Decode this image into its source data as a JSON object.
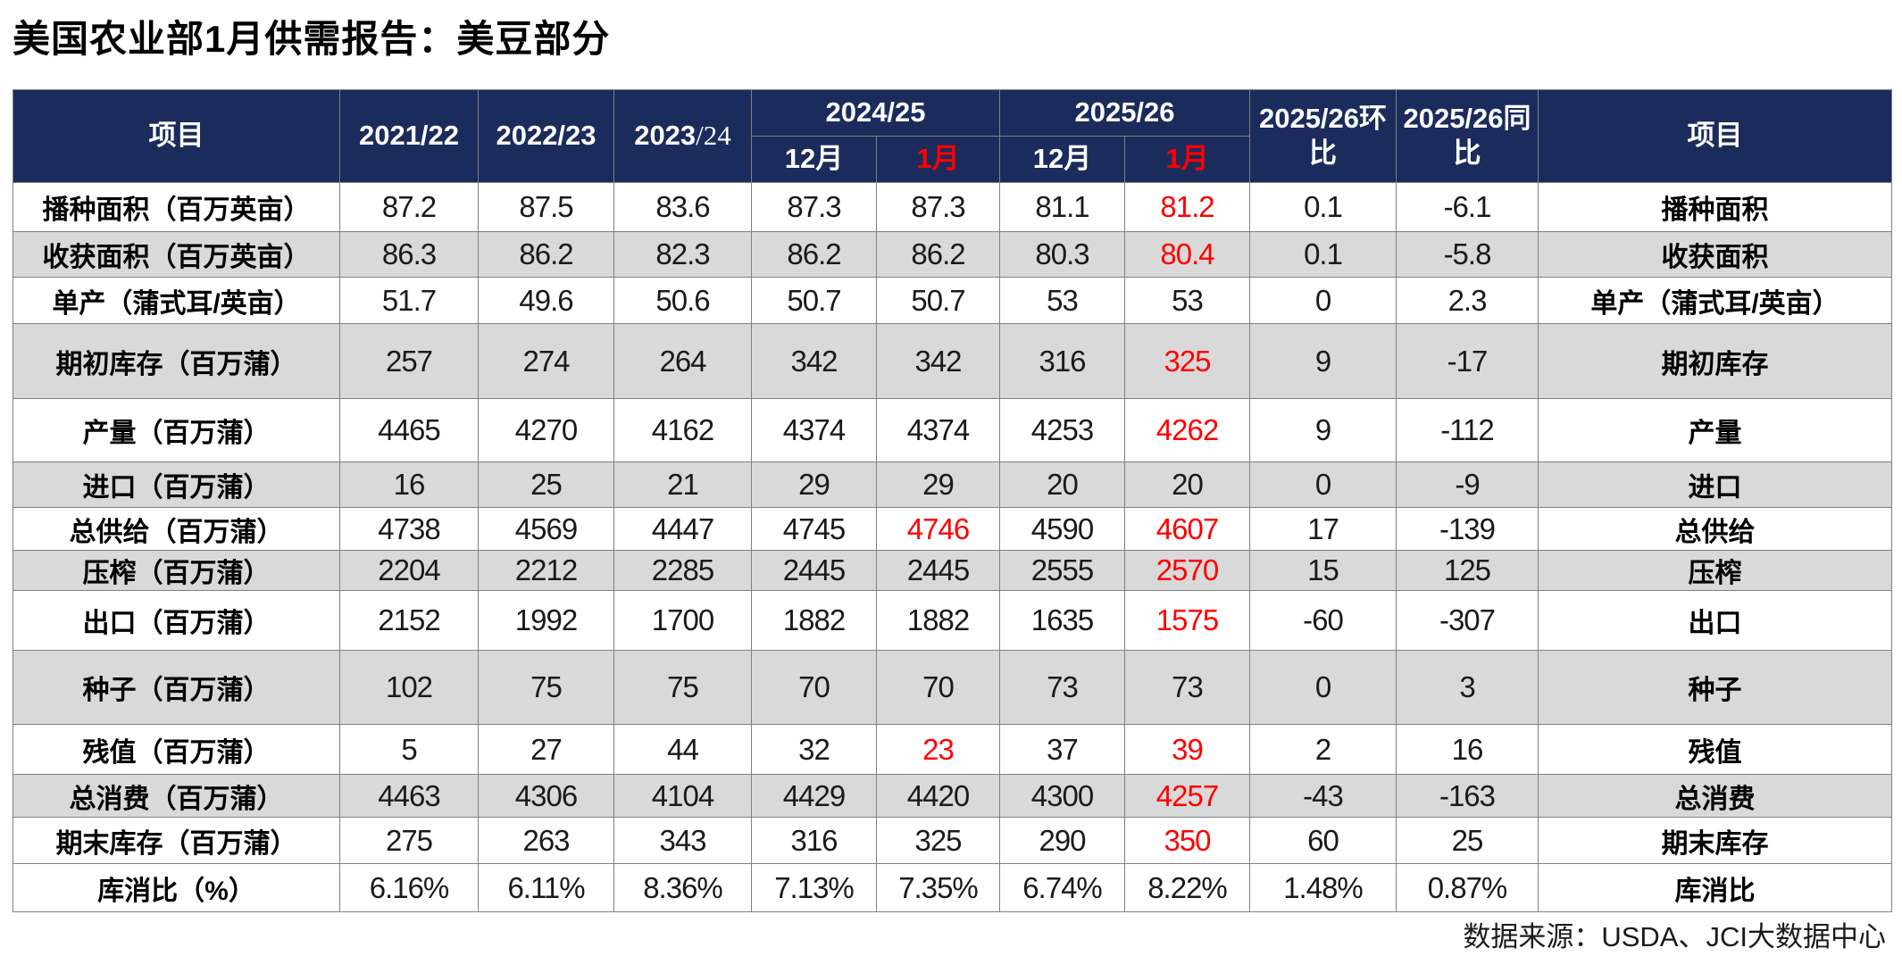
{
  "title": "美国农业部1月供需报告：美豆部分",
  "footer": {
    "source": "数据来源：USDA、JCI大数据中心"
  },
  "colors": {
    "navy": "#1B2B5C",
    "red": "#FF0000",
    "stripe": "#D9D9D9",
    "border": "#808080",
    "text": "#1A1A1A"
  },
  "header": {
    "item_left": "项目",
    "item_right": "项目",
    "year_cols": [
      "2021/22",
      "2022/23"
    ],
    "year_col_mixed": {
      "bold_part": "2023",
      "thin_part": "/24"
    },
    "groups": [
      {
        "label": "2024/25",
        "months": [
          "12月",
          "1月"
        ]
      },
      {
        "label": "2025/26",
        "months": [
          "12月",
          "1月"
        ]
      }
    ],
    "mom_col": "2025/26环比",
    "yoy_col": "2025/26同比"
  },
  "rows": [
    {
      "label": "播种面积（百万英亩）",
      "right": "播种面积",
      "cells": [
        "87.2",
        "87.5",
        "83.6",
        "87.3",
        "87.3",
        "81.1",
        "81.2",
        "0.1",
        "-6.1"
      ],
      "red_cells": [
        6
      ]
    },
    {
      "label": "收获面积（百万英亩）",
      "right": "收获面积",
      "cells": [
        "86.3",
        "86.2",
        "82.3",
        "86.2",
        "86.2",
        "80.3",
        "80.4",
        "0.1",
        "-5.8"
      ],
      "red_cells": [
        6
      ]
    },
    {
      "label": "单产（蒲式耳/英亩）",
      "right": "单产（蒲式耳/英亩）",
      "cells": [
        "51.7",
        "49.6",
        "50.6",
        "50.7",
        "50.7",
        "53",
        "53",
        "0",
        "2.3"
      ],
      "red_cells": []
    },
    {
      "label": "期初库存（百万蒲）",
      "right": "期初库存",
      "cells": [
        "257",
        "274",
        "264",
        "342",
        "342",
        "316",
        "325",
        "9",
        "-17"
      ],
      "red_cells": [
        6
      ]
    },
    {
      "label": "产量（百万蒲）",
      "right": "产量",
      "cells": [
        "4465",
        "4270",
        "4162",
        "4374",
        "4374",
        "4253",
        "4262",
        "9",
        "-112"
      ],
      "red_cells": [
        6
      ]
    },
    {
      "label": "进口（百万蒲）",
      "right": "进口",
      "cells": [
        "16",
        "25",
        "21",
        "29",
        "29",
        "20",
        "20",
        "0",
        "-9"
      ],
      "red_cells": []
    },
    {
      "label": "总供给（百万蒲）",
      "right": "总供给",
      "cells": [
        "4738",
        "4569",
        "4447",
        "4745",
        "4746",
        "4590",
        "4607",
        "17",
        "-139"
      ],
      "red_cells": [
        4,
        6
      ]
    },
    {
      "label": "压榨（百万蒲）",
      "right": "压榨",
      "cells": [
        "2204",
        "2212",
        "2285",
        "2445",
        "2445",
        "2555",
        "2570",
        "15",
        "125"
      ],
      "red_cells": [
        6
      ]
    },
    {
      "label": "出口（百万蒲）",
      "right": "出口",
      "cells": [
        "2152",
        "1992",
        "1700",
        "1882",
        "1882",
        "1635",
        "1575",
        "-60",
        "-307"
      ],
      "red_cells": [
        6
      ]
    },
    {
      "label": "种子（百万蒲）",
      "right": "种子",
      "cells": [
        "102",
        "75",
        "75",
        "70",
        "70",
        "73",
        "73",
        "0",
        "3"
      ],
      "red_cells": []
    },
    {
      "label": "残值（百万蒲）",
      "right": "残值",
      "cells": [
        "5",
        "27",
        "44",
        "32",
        "23",
        "37",
        "39",
        "2",
        "16"
      ],
      "red_cells": [
        4,
        6
      ]
    },
    {
      "label": "总消费（百万蒲）",
      "right": "总消费",
      "cells": [
        "4463",
        "4306",
        "4104",
        "4429",
        "4420",
        "4300",
        "4257",
        "-43",
        "-163"
      ],
      "red_cells": [
        6
      ]
    },
    {
      "label": "期末库存（百万蒲）",
      "right": "期末库存",
      "cells": [
        "275",
        "263",
        "343",
        "316",
        "325",
        "290",
        "350",
        "60",
        "25"
      ],
      "red_cells": [
        6
      ]
    },
    {
      "label": "库消比（%）",
      "right": "库消比",
      "cells": [
        "6.16%",
        "6.11%",
        "8.36%",
        "7.13%",
        "7.35%",
        "6.74%",
        "8.22%",
        "1.48%",
        "0.87%"
      ],
      "red_cells": []
    }
  ]
}
